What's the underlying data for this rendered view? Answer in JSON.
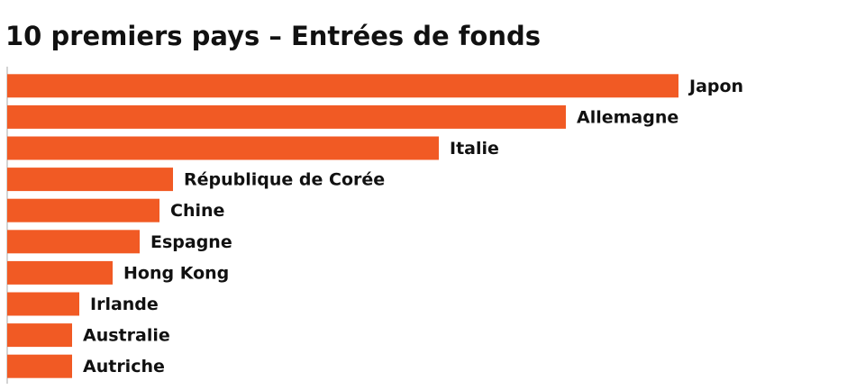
{
  "chart_data": {
    "type": "bar",
    "orientation": "horizontal",
    "title": "10 premiers pays – Entrées de fonds",
    "categories": [
      "Japon",
      "Allemagne",
      "Italie",
      "République de Corée",
      "Chine",
      "Espagne",
      "Hong Kong",
      "Irlande",
      "Australie",
      "Autriche"
    ],
    "values": [
      745,
      620,
      479,
      184,
      169,
      147,
      117,
      80,
      72,
      72
    ],
    "color": "#f15a24"
  }
}
